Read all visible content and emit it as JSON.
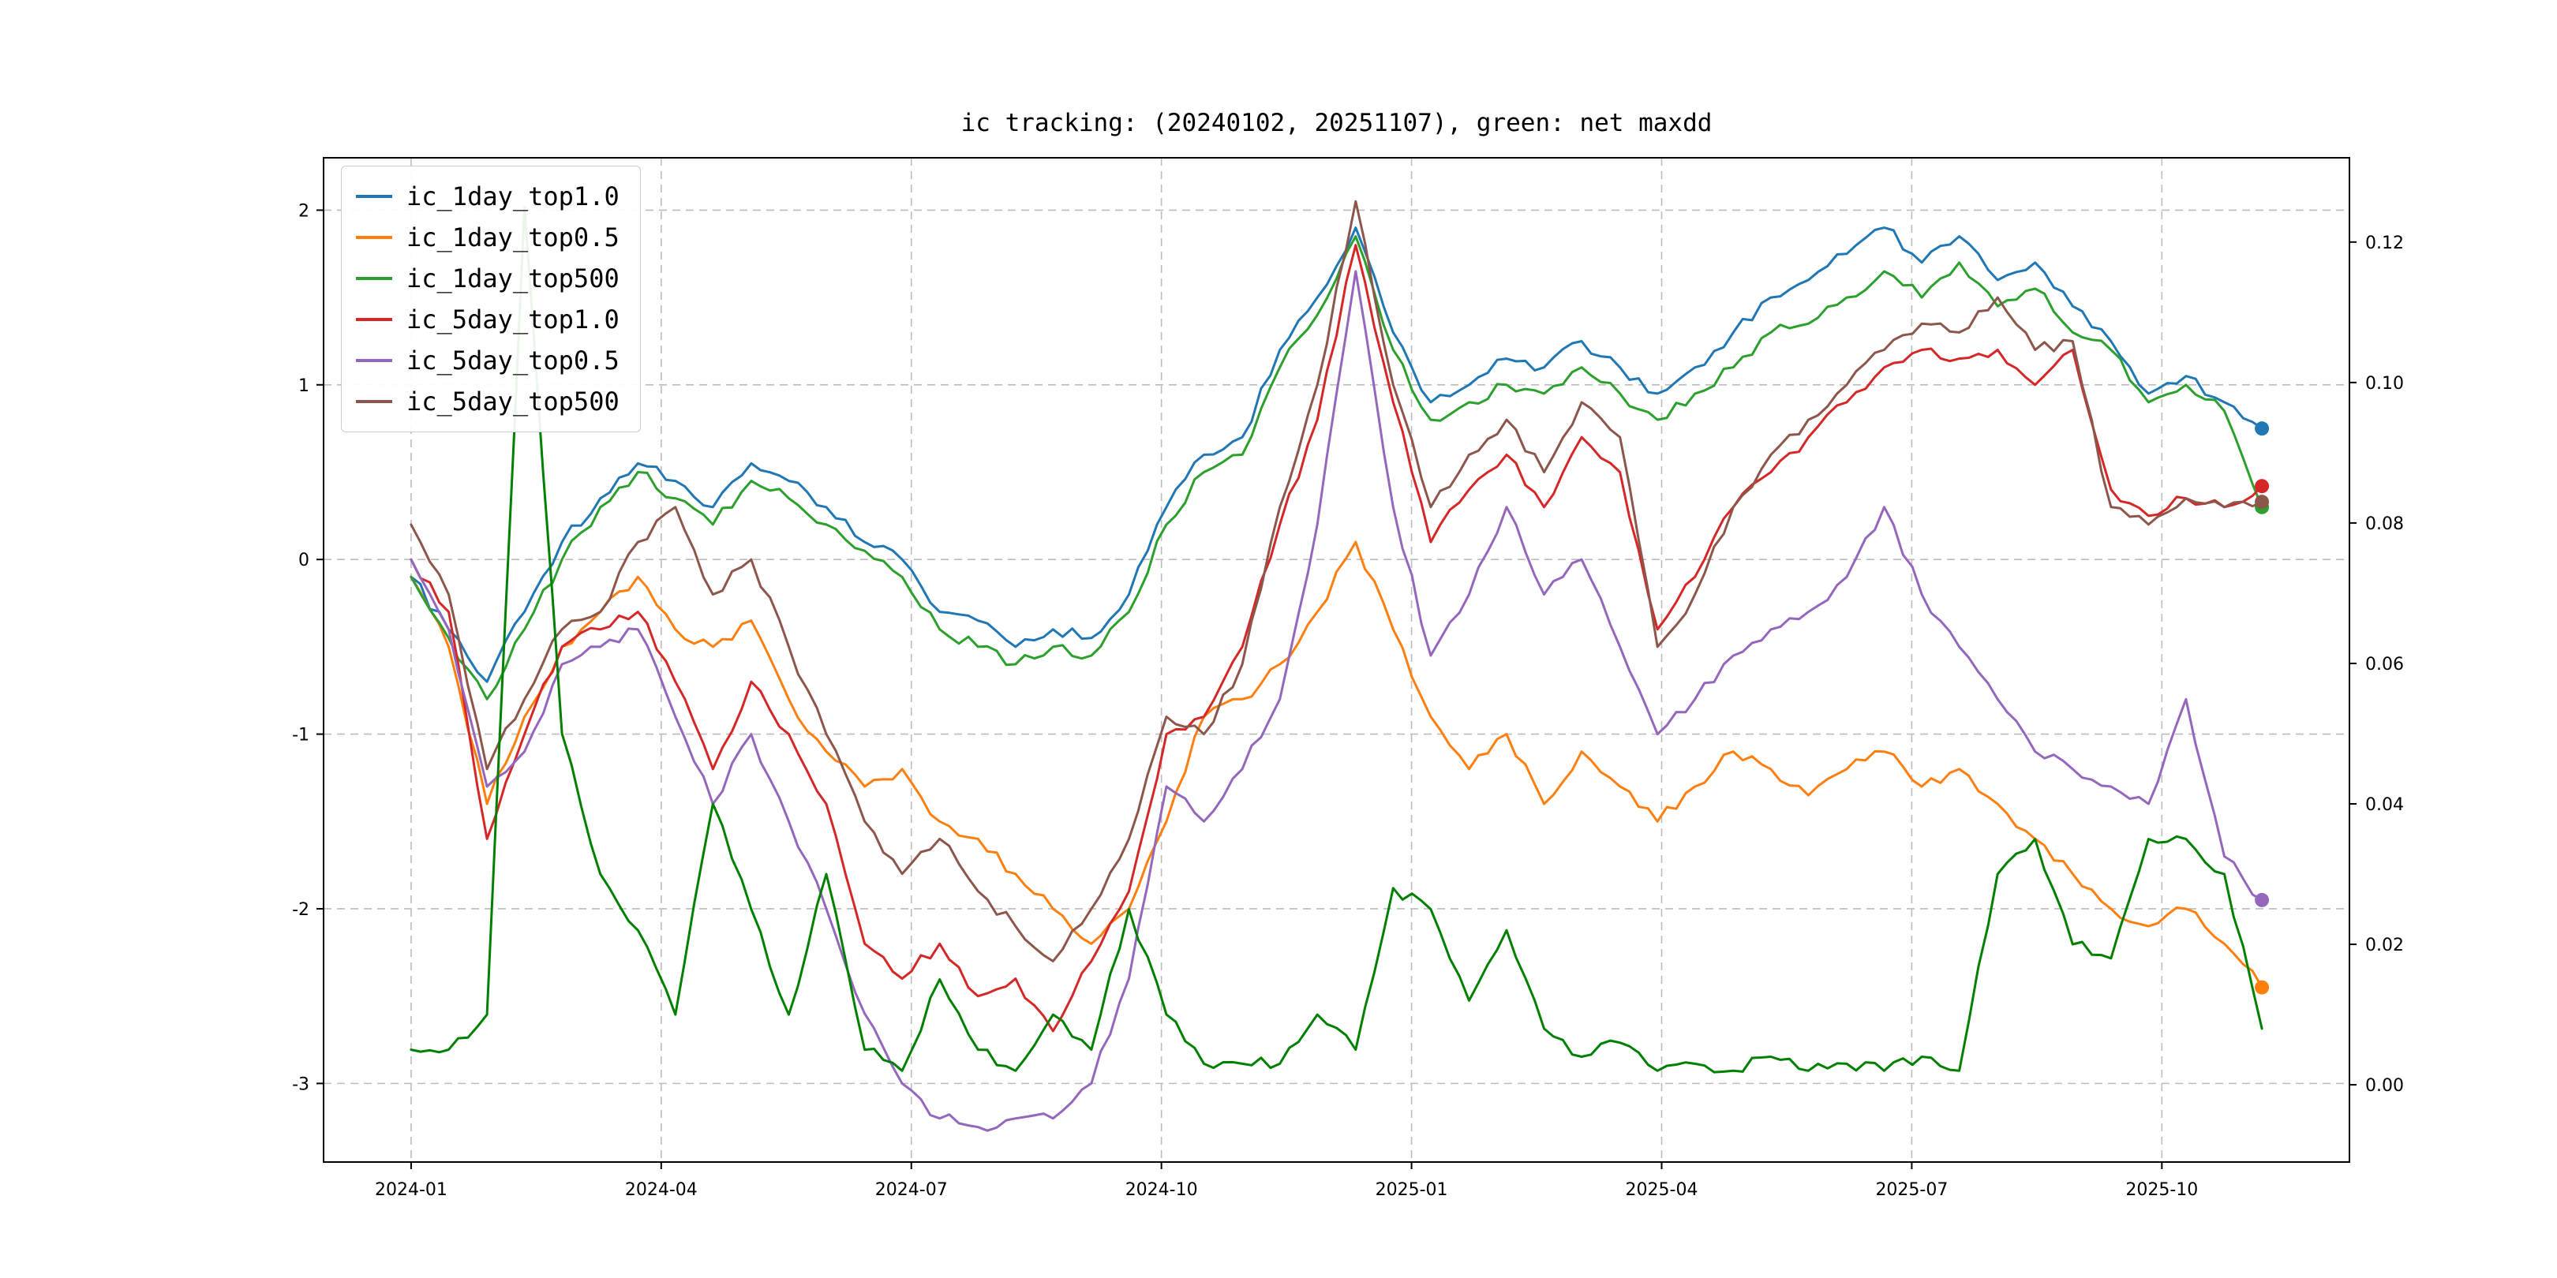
{
  "chart_data": {
    "type": "line",
    "title": "ic tracking: (20240102, 20251107), green: net maxdd",
    "x_tick_labels": [
      "2024-01",
      "2024-04",
      "2024-07",
      "2024-10",
      "2025-01",
      "2025-04",
      "2025-07",
      "2025-10"
    ],
    "x_tick_months": [
      0,
      3,
      6,
      9,
      12,
      15,
      18,
      21
    ],
    "xlim_months": [
      -1.05,
      23.25
    ],
    "left_axis": {
      "tick_values": [
        -3,
        -2,
        -1,
        0,
        1,
        2
      ],
      "tick_labels": [
        "-3",
        "-2",
        "-1",
        "0",
        "1",
        "2"
      ],
      "ylim": [
        -3.45,
        2.3
      ]
    },
    "right_axis": {
      "tick_values": [
        0,
        0.02,
        0.04,
        0.06,
        0.08,
        0.1,
        0.12
      ],
      "tick_labels": [
        "0.00",
        "0.02",
        "0.04",
        "0.06",
        "0.08",
        "0.10",
        "0.12"
      ],
      "ylim": [
        -0.011,
        0.132
      ]
    },
    "grid": true,
    "legend_position": "upper-left",
    "date_range": [
      "20240102",
      "20251107"
    ],
    "x_months": [
      0.0,
      0.45,
      0.91,
      1.36,
      1.81,
      2.27,
      2.72,
      3.17,
      3.62,
      4.08,
      4.53,
      4.98,
      5.44,
      5.89,
      6.34,
      6.8,
      7.25,
      7.7,
      8.16,
      8.61,
      9.06,
      9.51,
      9.97,
      10.42,
      10.87,
      11.33,
      11.78,
      12.23,
      12.69,
      13.14,
      13.59,
      14.04,
      14.5,
      14.95,
      15.4,
      15.86,
      16.31,
      16.76,
      17.22,
      17.67,
      18.12,
      18.57,
      19.03,
      19.48,
      19.93,
      20.39,
      20.84,
      21.29,
      21.75,
      22.2
    ],
    "legend": [
      "ic_1day_top1.0",
      "ic_1day_top0.5",
      "ic_1day_top500",
      "ic_5day_top1.0",
      "ic_5day_top0.5",
      "ic_5day_top500"
    ],
    "series": [
      {
        "name": "ic_1day_top1.0",
        "color": "#1f77b4",
        "axis": "left",
        "end_dot": true,
        "values": [
          -0.1,
          -0.4,
          -0.7,
          -0.3,
          0.1,
          0.35,
          0.55,
          0.45,
          0.3,
          0.55,
          0.45,
          0.3,
          0.1,
          0.0,
          -0.3,
          -0.35,
          -0.5,
          -0.4,
          -0.45,
          -0.2,
          0.3,
          0.6,
          0.7,
          1.2,
          1.5,
          1.9,
          1.3,
          0.9,
          1.0,
          1.15,
          1.1,
          1.25,
          1.1,
          0.95,
          1.1,
          1.3,
          1.5,
          1.6,
          1.75,
          1.9,
          1.7,
          1.85,
          1.6,
          1.7,
          1.45,
          1.25,
          0.95,
          1.05,
          0.9,
          0.75
        ]
      },
      {
        "name": "ic_1day_top0.5",
        "color": "#ff7f0e",
        "axis": "left",
        "end_dot": true,
        "values": [
          -0.1,
          -0.5,
          -1.4,
          -0.9,
          -0.5,
          -0.3,
          -0.1,
          -0.4,
          -0.5,
          -0.35,
          -0.8,
          -1.1,
          -1.3,
          -1.2,
          -1.5,
          -1.6,
          -1.8,
          -2.0,
          -2.2,
          -2.0,
          -1.5,
          -0.9,
          -0.8,
          -0.6,
          -0.3,
          0.1,
          -0.4,
          -0.9,
          -1.2,
          -1.0,
          -1.4,
          -1.1,
          -1.3,
          -1.5,
          -1.3,
          -1.1,
          -1.2,
          -1.35,
          -1.2,
          -1.1,
          -1.3,
          -1.2,
          -1.4,
          -1.6,
          -1.8,
          -2.0,
          -2.1,
          -2.0,
          -2.2,
          -2.45
        ]
      },
      {
        "name": "ic_1day_top500",
        "color": "#2ca02c",
        "axis": "left",
        "end_dot": true,
        "values": [
          -0.1,
          -0.45,
          -0.8,
          -0.4,
          0.0,
          0.3,
          0.5,
          0.35,
          0.2,
          0.45,
          0.35,
          0.2,
          0.05,
          -0.1,
          -0.4,
          -0.5,
          -0.6,
          -0.5,
          -0.55,
          -0.3,
          0.2,
          0.5,
          0.6,
          1.1,
          1.4,
          1.85,
          1.2,
          0.8,
          0.9,
          1.0,
          0.95,
          1.1,
          0.95,
          0.8,
          0.95,
          1.1,
          1.3,
          1.35,
          1.5,
          1.65,
          1.5,
          1.7,
          1.45,
          1.55,
          1.3,
          1.2,
          0.9,
          1.0,
          0.85,
          0.3
        ]
      },
      {
        "name": "ic_5day_top1.0",
        "color": "#d62728",
        "axis": "left",
        "end_dot": true,
        "values": [
          0.0,
          -0.3,
          -1.6,
          -1.0,
          -0.5,
          -0.4,
          -0.3,
          -0.7,
          -1.2,
          -0.7,
          -1.0,
          -1.4,
          -2.2,
          -2.4,
          -2.2,
          -2.5,
          -2.4,
          -2.7,
          -2.3,
          -1.9,
          -1.0,
          -0.9,
          -0.5,
          0.2,
          0.8,
          1.8,
          0.9,
          0.1,
          0.4,
          0.6,
          0.3,
          0.7,
          0.5,
          -0.4,
          -0.1,
          0.3,
          0.5,
          0.7,
          0.9,
          1.1,
          1.2,
          1.15,
          1.2,
          1.0,
          1.2,
          0.4,
          0.25,
          0.35,
          0.3,
          0.42
        ]
      },
      {
        "name": "ic_5day_top0.5",
        "color": "#9467bd",
        "axis": "left",
        "end_dot": true,
        "values": [
          0.0,
          -0.4,
          -1.3,
          -1.1,
          -0.6,
          -0.5,
          -0.4,
          -0.9,
          -1.4,
          -1.0,
          -1.5,
          -2.0,
          -2.6,
          -3.0,
          -3.2,
          -3.25,
          -3.2,
          -3.2,
          -3.0,
          -2.4,
          -1.3,
          -1.5,
          -1.2,
          -0.8,
          0.2,
          1.65,
          0.3,
          -0.55,
          -0.2,
          0.3,
          -0.2,
          0.0,
          -0.5,
          -1.0,
          -0.8,
          -0.55,
          -0.4,
          -0.3,
          -0.1,
          0.3,
          -0.2,
          -0.5,
          -0.8,
          -1.1,
          -1.2,
          -1.3,
          -1.4,
          -0.8,
          -1.7,
          -1.95
        ]
      },
      {
        "name": "ic_5day_top500",
        "color": "#8c564b",
        "axis": "left",
        "end_dot": true,
        "values": [
          0.2,
          -0.2,
          -1.2,
          -0.8,
          -0.4,
          -0.3,
          0.1,
          0.3,
          -0.2,
          0.0,
          -0.5,
          -1.0,
          -1.5,
          -1.8,
          -1.6,
          -1.9,
          -2.1,
          -2.3,
          -2.0,
          -1.6,
          -0.9,
          -1.0,
          -0.6,
          0.3,
          1.0,
          2.05,
          1.0,
          0.3,
          0.6,
          0.8,
          0.5,
          0.9,
          0.7,
          -0.5,
          -0.2,
          0.3,
          0.6,
          0.8,
          1.0,
          1.2,
          1.35,
          1.3,
          1.5,
          1.2,
          1.25,
          0.3,
          0.2,
          0.35,
          0.3,
          0.33
        ]
      },
      {
        "name": "net_maxdd",
        "color": "#008000",
        "axis": "right",
        "end_dot": false,
        "values": [
          0.005,
          0.005,
          0.01,
          0.125,
          0.05,
          0.03,
          0.022,
          0.01,
          0.04,
          0.025,
          0.01,
          0.03,
          0.005,
          0.002,
          0.015,
          0.005,
          0.002,
          0.01,
          0.005,
          0.025,
          0.01,
          0.003,
          0.003,
          0.003,
          0.01,
          0.005,
          0.028,
          0.025,
          0.012,
          0.022,
          0.008,
          0.004,
          0.006,
          0.002,
          0.003,
          0.002,
          0.004,
          0.002,
          0.003,
          0.002,
          0.004,
          0.002,
          0.03,
          0.035,
          0.02,
          0.018,
          0.035,
          0.035,
          0.03,
          0.008
        ]
      }
    ]
  }
}
